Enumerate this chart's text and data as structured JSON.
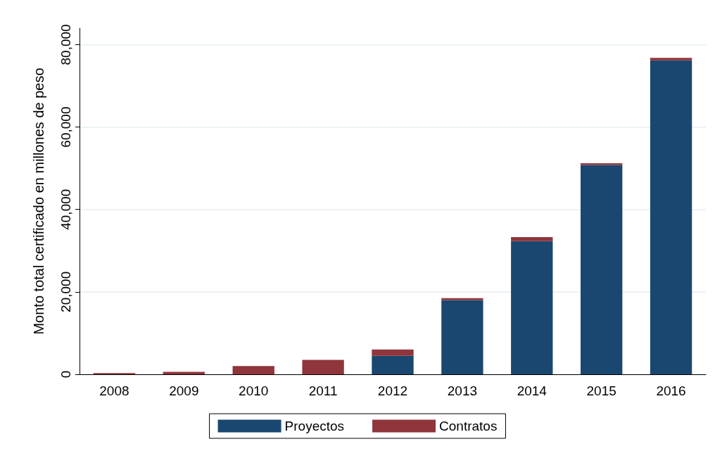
{
  "chart_data": {
    "type": "bar",
    "stacked": true,
    "ylabel": "Monto total certificado en millones de peso",
    "categories": [
      "2008",
      "2009",
      "2010",
      "2011",
      "2012",
      "2013",
      "2014",
      "2015",
      "2016"
    ],
    "series": [
      {
        "name": "Proyectos",
        "color": "#1a476f",
        "values": [
          0,
          0,
          0,
          0,
          4500,
          18000,
          32300,
          50800,
          76200
        ]
      },
      {
        "name": "Contratos",
        "color": "#90353b",
        "values": [
          300,
          600,
          2000,
          3500,
          1500,
          500,
          1000,
          400,
          600
        ]
      }
    ],
    "ylim": [
      0,
      84000
    ],
    "yticks": [
      0,
      {
        "value": 20000,
        "label": "20,000"
      },
      {
        "value": 40000,
        "label": "40,000"
      },
      {
        "value": 60000,
        "label": "60,000"
      },
      {
        "value": 80000,
        "label": "80,000"
      }
    ],
    "grid": "y",
    "legend": "bottom"
  }
}
